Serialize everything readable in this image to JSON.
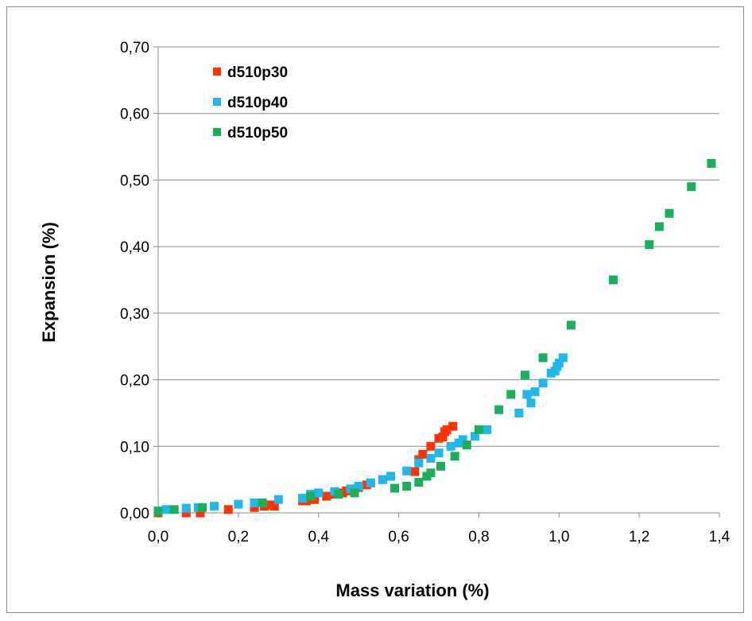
{
  "chart_data": {
    "type": "scatter",
    "xlabel": "Mass variation (%)",
    "ylabel": "Expansion (%)",
    "xlim": [
      0,
      1.4
    ],
    "ylim": [
      0,
      0.7
    ],
    "x_ticks": [
      "0,0",
      "0,2",
      "0,4",
      "0,6",
      "0,8",
      "1,0",
      "1,2",
      "1,4"
    ],
    "y_ticks": [
      "0,00",
      "0,10",
      "0,20",
      "0,30",
      "0,40",
      "0,50",
      "0,60",
      "0,70"
    ],
    "x_tick_values": [
      0,
      0.2,
      0.4,
      0.6,
      0.8,
      1.0,
      1.2,
      1.4
    ],
    "y_tick_values": [
      0,
      0.1,
      0.2,
      0.3,
      0.4,
      0.5,
      0.6,
      0.7
    ],
    "grid": "horizontal",
    "legend_position": "top-left",
    "series": [
      {
        "name": "d510p30",
        "color": "#ff3300",
        "points": [
          [
            0.0,
            0.0
          ],
          [
            0.07,
            0.0
          ],
          [
            0.105,
            0.0
          ],
          [
            0.175,
            0.005
          ],
          [
            0.24,
            0.008
          ],
          [
            0.265,
            0.01
          ],
          [
            0.28,
            0.012
          ],
          [
            0.29,
            0.01
          ],
          [
            0.36,
            0.018
          ],
          [
            0.37,
            0.018
          ],
          [
            0.39,
            0.02
          ],
          [
            0.42,
            0.025
          ],
          [
            0.44,
            0.028
          ],
          [
            0.46,
            0.03
          ],
          [
            0.47,
            0.033
          ],
          [
            0.5,
            0.038
          ],
          [
            0.52,
            0.042
          ],
          [
            0.53,
            0.045
          ],
          [
            0.56,
            0.05
          ],
          [
            0.64,
            0.062
          ],
          [
            0.65,
            0.08
          ],
          [
            0.66,
            0.088
          ],
          [
            0.68,
            0.1
          ],
          [
            0.7,
            0.112
          ],
          [
            0.71,
            0.114
          ],
          [
            0.715,
            0.122
          ],
          [
            0.72,
            0.125
          ],
          [
            0.735,
            0.13
          ]
        ]
      },
      {
        "name": "d510p40",
        "color": "#21b7ea",
        "points": [
          [
            0.0,
            0.003
          ],
          [
            0.02,
            0.005
          ],
          [
            0.07,
            0.007
          ],
          [
            0.1,
            0.008
          ],
          [
            0.14,
            0.01
          ],
          [
            0.2,
            0.013
          ],
          [
            0.24,
            0.015
          ],
          [
            0.3,
            0.02
          ],
          [
            0.36,
            0.022
          ],
          [
            0.38,
            0.028
          ],
          [
            0.4,
            0.03
          ],
          [
            0.44,
            0.032
          ],
          [
            0.48,
            0.036
          ],
          [
            0.5,
            0.04
          ],
          [
            0.53,
            0.045
          ],
          [
            0.56,
            0.05
          ],
          [
            0.58,
            0.055
          ],
          [
            0.62,
            0.063
          ],
          [
            0.65,
            0.075
          ],
          [
            0.68,
            0.082
          ],
          [
            0.7,
            0.09
          ],
          [
            0.73,
            0.1
          ],
          [
            0.75,
            0.105
          ],
          [
            0.76,
            0.11
          ],
          [
            0.79,
            0.115
          ],
          [
            0.82,
            0.125
          ],
          [
            0.9,
            0.15
          ],
          [
            0.92,
            0.178
          ],
          [
            0.93,
            0.165
          ],
          [
            0.94,
            0.182
          ],
          [
            0.96,
            0.195
          ],
          [
            0.98,
            0.21
          ],
          [
            0.99,
            0.213
          ],
          [
            0.995,
            0.22
          ],
          [
            1.0,
            0.225
          ],
          [
            1.01,
            0.233
          ]
        ]
      },
      {
        "name": "d510p50",
        "color": "#1ab05a",
        "points": [
          [
            0.0,
            0.002
          ],
          [
            0.04,
            0.005
          ],
          [
            0.11,
            0.008
          ],
          [
            0.26,
            0.015
          ],
          [
            0.38,
            0.025
          ],
          [
            0.45,
            0.028
          ],
          [
            0.49,
            0.03
          ],
          [
            0.59,
            0.037
          ],
          [
            0.62,
            0.04
          ],
          [
            0.65,
            0.046
          ],
          [
            0.67,
            0.055
          ],
          [
            0.68,
            0.06
          ],
          [
            0.705,
            0.07
          ],
          [
            0.74,
            0.085
          ],
          [
            0.77,
            0.102
          ],
          [
            0.8,
            0.125
          ],
          [
            0.85,
            0.155
          ],
          [
            0.88,
            0.178
          ],
          [
            0.915,
            0.207
          ],
          [
            0.96,
            0.233
          ],
          [
            1.03,
            0.282
          ],
          [
            1.135,
            0.35
          ],
          [
            1.225,
            0.403
          ],
          [
            1.25,
            0.43
          ],
          [
            1.275,
            0.45
          ],
          [
            1.33,
            0.49
          ],
          [
            1.38,
            0.525
          ]
        ]
      }
    ]
  }
}
